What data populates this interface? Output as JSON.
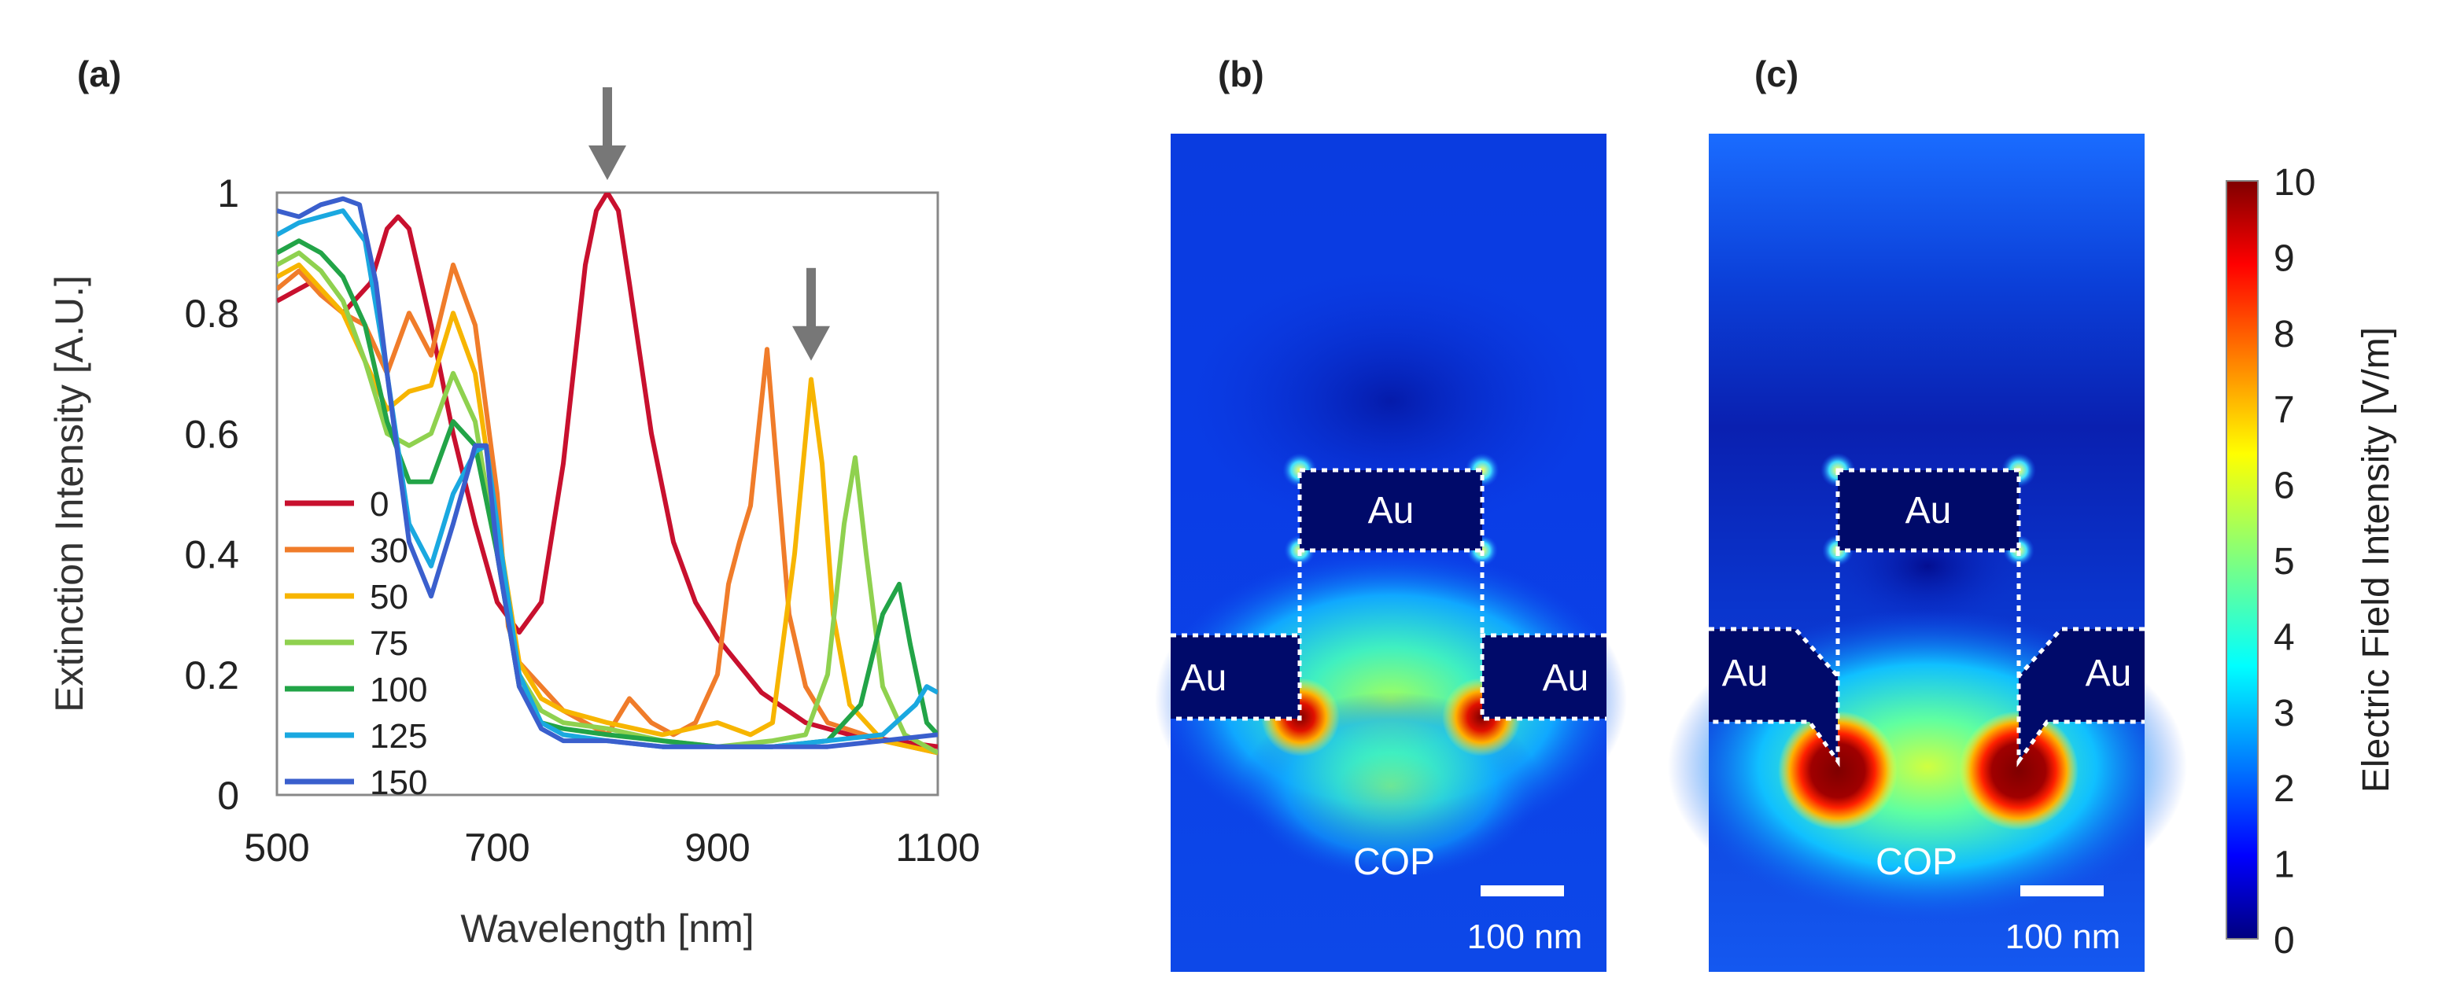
{
  "panels": {
    "a": "(a)",
    "b": "(b)",
    "c": "(c)"
  },
  "chart_data": [
    {
      "type": "line",
      "panel": "(a)",
      "title": "",
      "xlabel": "Wavelength [nm]",
      "ylabel": "Extinction Intensity [A.U.]",
      "xlim": [
        500,
        1100
      ],
      "ylim": [
        0,
        1
      ],
      "xticks": [
        500,
        700,
        900,
        1100
      ],
      "xtick_labels": [
        "500",
        "700",
        "900",
        "1100"
      ],
      "yticks": [
        0,
        0.2,
        0.4,
        0.6,
        0.8,
        1
      ],
      "ytick_labels": [
        "0",
        "0.2",
        "0.4",
        "0.6",
        "0.8",
        "1"
      ],
      "legend_position": "center-left",
      "annotations": [
        {
          "type": "arrow",
          "x": 800,
          "y": 1.0,
          "color": "#777777"
        },
        {
          "type": "arrow",
          "x": 985,
          "y": 0.7,
          "color": "#777777"
        }
      ],
      "series": [
        {
          "name": "0",
          "color": "#c8102e",
          "x": [
            500,
            530,
            560,
            585,
            600,
            610,
            620,
            640,
            660,
            680,
            700,
            720,
            740,
            760,
            780,
            790,
            800,
            810,
            820,
            840,
            860,
            880,
            900,
            940,
            980,
            1020,
            1060,
            1100
          ],
          "y": [
            0.82,
            0.85,
            0.8,
            0.85,
            0.94,
            0.96,
            0.94,
            0.78,
            0.6,
            0.45,
            0.32,
            0.27,
            0.32,
            0.55,
            0.88,
            0.97,
            1.0,
            0.97,
            0.85,
            0.6,
            0.42,
            0.32,
            0.26,
            0.17,
            0.12,
            0.1,
            0.09,
            0.08
          ]
        },
        {
          "name": "30",
          "color": "#f07c2a",
          "x": [
            500,
            520,
            540,
            560,
            580,
            600,
            620,
            640,
            660,
            680,
            700,
            710,
            720,
            740,
            760,
            780,
            800,
            820,
            840,
            860,
            880,
            900,
            910,
            920,
            930,
            945,
            955,
            965,
            980,
            1000,
            1050,
            1100
          ],
          "y": [
            0.84,
            0.87,
            0.83,
            0.8,
            0.78,
            0.7,
            0.8,
            0.73,
            0.88,
            0.78,
            0.5,
            0.28,
            0.22,
            0.18,
            0.14,
            0.12,
            0.1,
            0.16,
            0.12,
            0.1,
            0.12,
            0.2,
            0.35,
            0.42,
            0.48,
            0.74,
            0.52,
            0.3,
            0.18,
            0.12,
            0.09,
            0.07
          ]
        },
        {
          "name": "50",
          "color": "#f7b500",
          "x": [
            500,
            520,
            540,
            560,
            580,
            600,
            620,
            640,
            660,
            680,
            700,
            720,
            740,
            760,
            800,
            850,
            900,
            930,
            950,
            970,
            985,
            995,
            1005,
            1020,
            1050,
            1100
          ],
          "y": [
            0.86,
            0.88,
            0.84,
            0.8,
            0.72,
            0.64,
            0.67,
            0.68,
            0.8,
            0.7,
            0.45,
            0.22,
            0.16,
            0.14,
            0.12,
            0.1,
            0.12,
            0.1,
            0.12,
            0.4,
            0.69,
            0.55,
            0.3,
            0.15,
            0.09,
            0.07
          ]
        },
        {
          "name": "75",
          "color": "#8fd14f",
          "x": [
            500,
            520,
            540,
            560,
            580,
            600,
            620,
            640,
            660,
            680,
            700,
            720,
            740,
            760,
            800,
            850,
            900,
            950,
            980,
            1000,
            1015,
            1025,
            1035,
            1050,
            1070,
            1100
          ],
          "y": [
            0.88,
            0.9,
            0.87,
            0.82,
            0.72,
            0.6,
            0.58,
            0.6,
            0.7,
            0.62,
            0.4,
            0.2,
            0.14,
            0.12,
            0.11,
            0.09,
            0.08,
            0.09,
            0.1,
            0.2,
            0.45,
            0.56,
            0.4,
            0.18,
            0.1,
            0.07
          ]
        },
        {
          "name": "100",
          "color": "#22a447",
          "x": [
            500,
            520,
            540,
            560,
            580,
            600,
            620,
            640,
            660,
            680,
            700,
            720,
            740,
            760,
            800,
            850,
            900,
            950,
            1000,
            1030,
            1050,
            1065,
            1075,
            1090,
            1100
          ],
          "y": [
            0.9,
            0.92,
            0.9,
            0.86,
            0.78,
            0.62,
            0.52,
            0.52,
            0.62,
            0.58,
            0.4,
            0.18,
            0.12,
            0.11,
            0.1,
            0.09,
            0.08,
            0.08,
            0.09,
            0.15,
            0.3,
            0.35,
            0.25,
            0.12,
            0.1
          ]
        },
        {
          "name": "125",
          "color": "#1aa8e0",
          "x": [
            500,
            520,
            540,
            560,
            580,
            600,
            620,
            640,
            660,
            680,
            690,
            700,
            720,
            740,
            760,
            800,
            850,
            900,
            950,
            1000,
            1050,
            1080,
            1090,
            1100
          ],
          "y": [
            0.93,
            0.95,
            0.96,
            0.97,
            0.92,
            0.7,
            0.45,
            0.38,
            0.5,
            0.57,
            0.58,
            0.45,
            0.2,
            0.12,
            0.1,
            0.09,
            0.08,
            0.08,
            0.08,
            0.09,
            0.1,
            0.15,
            0.18,
            0.17
          ]
        },
        {
          "name": "150",
          "color": "#3a5fcd",
          "x": [
            500,
            520,
            540,
            560,
            575,
            590,
            600,
            620,
            640,
            660,
            680,
            690,
            700,
            720,
            740,
            760,
            800,
            850,
            900,
            950,
            1000,
            1050,
            1100
          ],
          "y": [
            0.97,
            0.96,
            0.98,
            0.99,
            0.98,
            0.85,
            0.7,
            0.42,
            0.33,
            0.45,
            0.58,
            0.58,
            0.4,
            0.18,
            0.11,
            0.09,
            0.09,
            0.08,
            0.08,
            0.08,
            0.08,
            0.09,
            0.1
          ]
        }
      ]
    },
    {
      "type": "heatmap",
      "panel": "(b)",
      "labels": {
        "top": "Au",
        "left": "Au",
        "right": "Au",
        "substrate": "COP"
      },
      "scale_bar": "100 nm"
    },
    {
      "type": "heatmap",
      "panel": "(c)",
      "labels": {
        "top": "Au",
        "left": "Au",
        "right": "Au",
        "substrate": "COP"
      },
      "scale_bar": "100 nm"
    }
  ],
  "colorbar": {
    "title": "Electric Field Intensity [V/m]",
    "min": 0,
    "max": 10,
    "ticks": [
      "0",
      "1",
      "2",
      "3",
      "4",
      "5",
      "6",
      "7",
      "8",
      "9",
      "10"
    ],
    "colors": [
      "#00007f",
      "#0000ff",
      "#007fff",
      "#00ffff",
      "#7fff7f",
      "#ffff00",
      "#ff7f00",
      "#ff0000",
      "#7f0000"
    ]
  }
}
